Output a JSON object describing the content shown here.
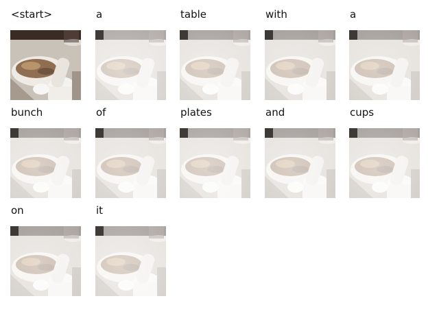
{
  "frames": [
    {
      "word": "<start>",
      "overlay": 0.0
    },
    {
      "word": "a",
      "overlay": 0.72
    },
    {
      "word": "table",
      "overlay": 0.68
    },
    {
      "word": "with",
      "overlay": 0.66
    },
    {
      "word": "a",
      "overlay": 0.66
    },
    {
      "word": "bunch",
      "overlay": 0.67
    },
    {
      "word": "of",
      "overlay": 0.68
    },
    {
      "word": "plates",
      "overlay": 0.7
    },
    {
      "word": "and",
      "overlay": 0.67
    },
    {
      "word": "cups",
      "overlay": 0.68
    },
    {
      "word": "on",
      "overlay": 0.66
    },
    {
      "word": "it",
      "overlay": 0.7
    }
  ]
}
